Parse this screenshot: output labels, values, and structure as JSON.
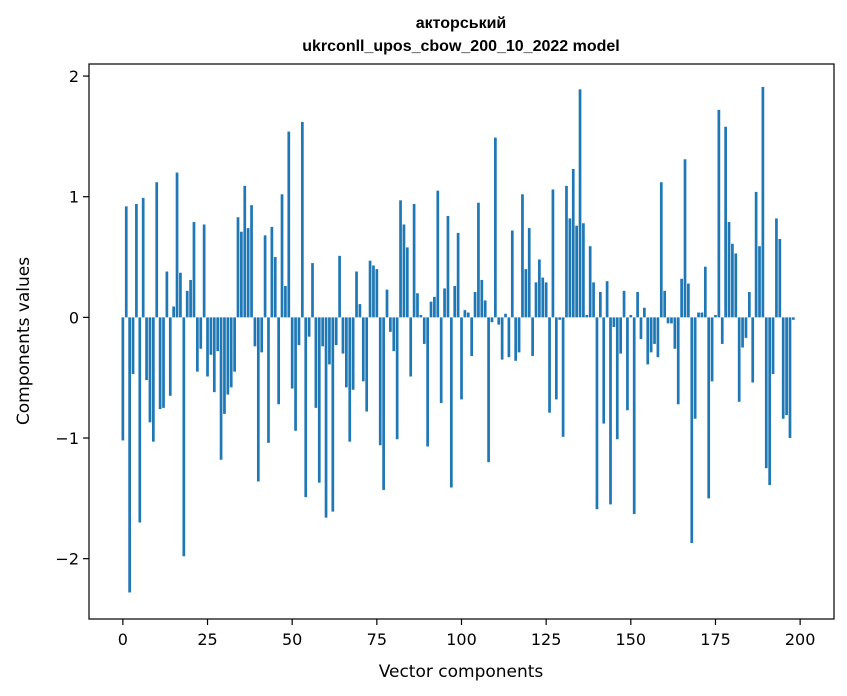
{
  "chart_data": {
    "type": "bar",
    "title_line1": "акторський",
    "title_line2": "ukrconll_upos_cbow_200_10_2022 model",
    "xlabel": "Vector components",
    "ylabel": "Components values",
    "xlim": [
      -10,
      210
    ],
    "ylim": [
      -2.5,
      2.1
    ],
    "xticks": [
      0,
      25,
      50,
      75,
      100,
      125,
      150,
      175,
      200
    ],
    "xtick_labels": [
      "0",
      "25",
      "50",
      "75",
      "100",
      "125",
      "150",
      "175",
      "200"
    ],
    "yticks": [
      2,
      1,
      0,
      -1,
      -2
    ],
    "ytick_labels": [
      "2",
      "1",
      "0",
      "−1",
      "−2"
    ],
    "grid": false,
    "bar_color": "#1f77b4",
    "values": [
      -1.02,
      0.92,
      -2.28,
      -0.47,
      0.94,
      -1.7,
      0.99,
      -0.52,
      -0.87,
      -1.03,
      1.12,
      -0.76,
      -0.75,
      0.38,
      -0.65,
      0.09,
      1.2,
      0.37,
      -1.98,
      0.22,
      0.31,
      0.79,
      -0.45,
      -0.26,
      0.77,
      -0.49,
      -0.31,
      -0.62,
      -0.28,
      -1.18,
      -0.8,
      -0.64,
      -0.58,
      -0.45,
      0.83,
      0.71,
      1.09,
      0.74,
      0.93,
      -0.24,
      -1.36,
      -0.29,
      0.68,
      -1.04,
      0.75,
      0.5,
      -0.72,
      1.02,
      0.26,
      1.54,
      -0.59,
      -0.94,
      -0.23,
      1.62,
      -1.49,
      -0.16,
      0.45,
      -0.75,
      -1.37,
      -0.24,
      -1.66,
      -0.39,
      -1.61,
      -0.23,
      0.51,
      -0.3,
      -0.58,
      -1.03,
      -0.6,
      0.38,
      0.11,
      -0.53,
      -0.78,
      0.47,
      0.43,
      0.4,
      -1.06,
      -1.43,
      0.23,
      -0.12,
      -0.28,
      -1.01,
      0.97,
      0.77,
      0.58,
      -0.49,
      0.94,
      0.2,
      0.02,
      -0.22,
      -1.07,
      0.13,
      0.17,
      1.05,
      -0.71,
      0.24,
      0.84,
      -1.41,
      0.26,
      0.7,
      -0.68,
      0.06,
      0.04,
      -0.32,
      0.21,
      0.95,
      0.31,
      0.14,
      -1.2,
      -0.04,
      1.49,
      -0.06,
      -0.35,
      0.03,
      -0.33,
      0.72,
      -0.36,
      -0.29,
      1.02,
      0.4,
      0.74,
      -0.32,
      0.29,
      0.48,
      0.33,
      0.29,
      -0.79,
      1.06,
      -0.68,
      -0.02,
      -0.99,
      1.09,
      0.82,
      1.23,
      0.76,
      1.89,
      0.78,
      0.02,
      0.59,
      0.29,
      -1.59,
      0.21,
      -0.88,
      0.3,
      -1.55,
      -0.08,
      -1.01,
      -0.3,
      0.22,
      -0.77,
      0.02,
      -1.63,
      0.21,
      -0.18,
      0.08,
      -0.39,
      -0.29,
      -0.22,
      -0.33,
      1.12,
      0.22,
      -0.05,
      -0.05,
      -0.26,
      -0.72,
      0.32,
      1.31,
      0.28,
      -1.87,
      -0.84,
      0.04,
      0.04,
      0.42,
      -1.5,
      -0.53,
      0.02,
      1.72,
      -0.22,
      1.58,
      0.79,
      0.61,
      0.53,
      -0.7,
      -0.25,
      -0.17,
      0.21,
      -0.54,
      1.04,
      0.59,
      1.91,
      -1.25,
      -1.39,
      -0.47,
      0.82,
      0.65,
      -0.84,
      -0.81,
      -1.0,
      -0.02
    ]
  }
}
